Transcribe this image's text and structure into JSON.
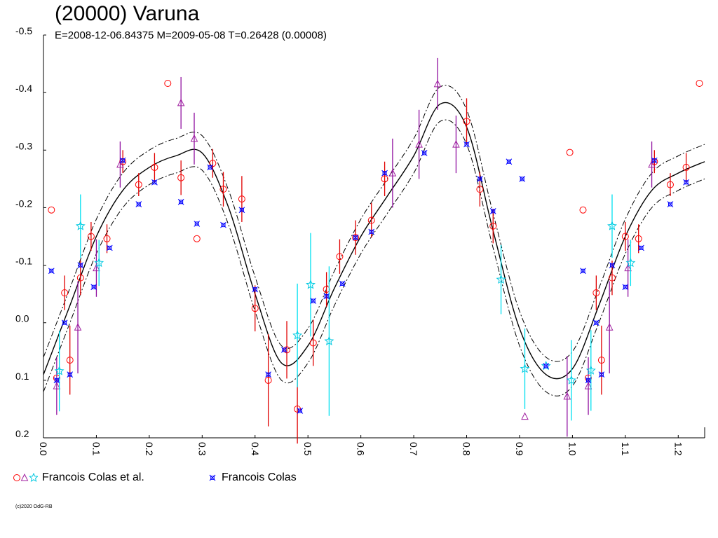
{
  "chart_data": {
    "type": "scatter",
    "title": "(20000) Varuna",
    "subtitle": "E=2008-12-06.84375    M=2009-05-08    T=0.26428 (0.00008)",
    "xlabel": "",
    "ylabel": "",
    "xlim": [
      0.0,
      1.25
    ],
    "ylim": [
      -0.5,
      0.2
    ],
    "y_inverted": true,
    "grid": false,
    "legend_placement": "bottom-left",
    "x_ticks": [
      "0.0",
      "0.1",
      "0.2",
      "0.3",
      "0.4",
      "0.5",
      "0.6",
      "0.7",
      "0.8",
      "0.9",
      "1.0",
      "1.1",
      "1.2"
    ],
    "y_ticks": [
      "-0.5",
      "-0.4",
      "-0.3",
      "-0.2",
      "-0.1",
      "0.0",
      "0.1",
      "0.2"
    ],
    "legend": [
      {
        "label": "Francois Colas et al.",
        "markers": [
          "circle",
          "triangle",
          "star"
        ]
      },
      {
        "label": "Francois Colas",
        "markers": [
          "cross"
        ]
      }
    ],
    "credit": "(c)2020 OdG-RB",
    "colors": {
      "circle": "#ff0000",
      "triangle": "#a020a0",
      "star": "#00ffff",
      "cross": "#0000ff",
      "fit": "#000000"
    },
    "fit_curve": {
      "x": [
        0.0,
        0.05,
        0.1,
        0.15,
        0.2,
        0.25,
        0.3,
        0.35,
        0.4,
        0.45,
        0.5,
        0.55,
        0.6,
        0.65,
        0.7,
        0.75,
        0.8,
        0.85,
        0.9,
        0.95,
        1.0,
        1.05,
        1.1,
        1.15,
        1.2,
        1.25
      ],
      "y": [
        0.09,
        -0.03,
        -0.15,
        -0.23,
        -0.27,
        -0.29,
        -0.295,
        -0.2,
        -0.05,
        0.07,
        0.04,
        -0.06,
        -0.15,
        -0.22,
        -0.29,
        -0.38,
        -0.34,
        -0.16,
        0.01,
        0.09,
        0.08,
        -0.03,
        -0.15,
        -0.23,
        -0.26,
        -0.28
      ],
      "band": 0.03
    },
    "series": [
      {
        "marker": "circle",
        "points": [
          [
            0.015,
            -0.196,
            0
          ],
          [
            0.025,
            0.096,
            0
          ],
          [
            0.04,
            -0.052,
            0.03
          ],
          [
            0.05,
            0.065,
            0.06
          ],
          [
            0.07,
            -0.078,
            0.03
          ],
          [
            0.09,
            -0.15,
            0.025
          ],
          [
            0.12,
            -0.146,
            0.025
          ],
          [
            0.15,
            -0.28,
            0.02
          ],
          [
            0.18,
            -0.24,
            0.02
          ],
          [
            0.21,
            -0.27,
            0.025
          ],
          [
            0.235,
            -0.416,
            0
          ],
          [
            0.26,
            -0.252,
            0.03
          ],
          [
            0.29,
            -0.146,
            0
          ],
          [
            0.32,
            -0.277,
            0.025
          ],
          [
            0.34,
            -0.232,
            0.03
          ],
          [
            0.375,
            -0.215,
            0.04
          ],
          [
            0.4,
            -0.025,
            0.04
          ],
          [
            0.425,
            0.1,
            0.08
          ],
          [
            0.46,
            0.047,
            0.05
          ],
          [
            0.48,
            0.15,
            0.06
          ],
          [
            0.51,
            0.035,
            0.04
          ],
          [
            0.535,
            -0.058,
            0.03
          ],
          [
            0.56,
            -0.115,
            0.03
          ],
          [
            0.59,
            -0.148,
            0.03
          ],
          [
            0.62,
            -0.178,
            0.03
          ],
          [
            0.645,
            -0.25,
            0.03
          ],
          [
            0.8,
            -0.35,
            0.04
          ],
          [
            0.825,
            -0.232,
            0.03
          ],
          [
            0.85,
            -0.168,
            0.03
          ],
          [
            0.995,
            -0.296,
            0
          ],
          [
            1.02,
            -0.196,
            0
          ],
          [
            1.03,
            0.096,
            0
          ],
          [
            1.045,
            -0.052,
            0.03
          ],
          [
            1.055,
            0.065,
            0.06
          ],
          [
            1.075,
            -0.078,
            0.03
          ],
          [
            1.1,
            -0.15,
            0.025
          ],
          [
            1.125,
            -0.146,
            0.025
          ],
          [
            1.155,
            -0.28,
            0.02
          ],
          [
            1.185,
            -0.24,
            0.02
          ],
          [
            1.215,
            -0.27,
            0.025
          ],
          [
            1.24,
            -0.416,
            0
          ]
        ]
      },
      {
        "marker": "triangle",
        "points": [
          [
            0.025,
            0.11,
            0.05
          ],
          [
            0.065,
            0.008,
            0.08
          ],
          [
            0.1,
            -0.095,
            0.05
          ],
          [
            0.145,
            -0.275,
            0.04
          ],
          [
            0.26,
            -0.382,
            0.045
          ],
          [
            0.285,
            -0.32,
            0.045
          ],
          [
            0.66,
            -0.26,
            0.06
          ],
          [
            0.71,
            -0.31,
            0.06
          ],
          [
            0.745,
            -0.415,
            0.045
          ],
          [
            0.78,
            -0.31,
            0.05
          ],
          [
            0.91,
            0.163,
            0
          ],
          [
            0.99,
            0.128,
            0.07
          ],
          [
            1.03,
            0.11,
            0.05
          ],
          [
            1.07,
            0.008,
            0.08
          ],
          [
            1.105,
            -0.095,
            0.05
          ],
          [
            1.15,
            -0.275,
            0.04
          ]
        ]
      },
      {
        "marker": "star",
        "points": [
          [
            0.03,
            0.084,
            0.07
          ],
          [
            0.07,
            -0.168,
            0.055
          ],
          [
            0.105,
            -0.104,
            0.04
          ],
          [
            0.48,
            0.022,
            0.09
          ],
          [
            0.505,
            -0.066,
            0.09
          ],
          [
            0.54,
            0.032,
            0.13
          ],
          [
            0.865,
            -0.075,
            0.06
          ],
          [
            0.91,
            0.08,
            0.07
          ],
          [
            0.95,
            0.075,
            0
          ],
          [
            0.998,
            0.1,
            0.07
          ],
          [
            1.035,
            0.083,
            0.07
          ],
          [
            1.075,
            -0.168,
            0.055
          ],
          [
            1.11,
            -0.104,
            0.04
          ]
        ]
      },
      {
        "marker": "cross",
        "points": [
          [
            0.015,
            -0.09,
            0
          ],
          [
            0.025,
            0.1,
            0
          ],
          [
            0.04,
            0.0,
            0
          ],
          [
            0.05,
            0.09,
            0
          ],
          [
            0.07,
            -0.1,
            0
          ],
          [
            0.095,
            -0.062,
            0
          ],
          [
            0.125,
            -0.13,
            0
          ],
          [
            0.15,
            -0.282,
            0
          ],
          [
            0.18,
            -0.206,
            0
          ],
          [
            0.21,
            -0.244,
            0
          ],
          [
            0.26,
            -0.21,
            0
          ],
          [
            0.29,
            -0.172,
            0
          ],
          [
            0.315,
            -0.27,
            0
          ],
          [
            0.34,
            -0.17,
            0
          ],
          [
            0.375,
            -0.196,
            0
          ],
          [
            0.4,
            -0.058,
            0
          ],
          [
            0.425,
            0.09,
            0
          ],
          [
            0.455,
            0.047,
            0
          ],
          [
            0.485,
            0.153,
            0
          ],
          [
            0.51,
            -0.038,
            0
          ],
          [
            0.535,
            -0.046,
            0
          ],
          [
            0.565,
            -0.068,
            0
          ],
          [
            0.59,
            -0.148,
            0
          ],
          [
            0.62,
            -0.158,
            0
          ],
          [
            0.645,
            -0.26,
            0
          ],
          [
            0.72,
            -0.295,
            0
          ],
          [
            0.8,
            -0.31,
            0
          ],
          [
            0.825,
            -0.25,
            0
          ],
          [
            0.85,
            -0.194,
            0
          ],
          [
            0.88,
            -0.28,
            0
          ],
          [
            0.905,
            -0.25,
            0
          ],
          [
            0.95,
            0.075,
            0
          ],
          [
            1.02,
            -0.09,
            0
          ],
          [
            1.03,
            0.1,
            0
          ],
          [
            1.045,
            0.0,
            0
          ],
          [
            1.055,
            0.09,
            0
          ],
          [
            1.075,
            -0.1,
            0
          ],
          [
            1.1,
            -0.062,
            0
          ],
          [
            1.13,
            -0.13,
            0
          ],
          [
            1.155,
            -0.282,
            0
          ],
          [
            1.185,
            -0.206,
            0
          ],
          [
            1.215,
            -0.244,
            0
          ]
        ]
      }
    ]
  }
}
